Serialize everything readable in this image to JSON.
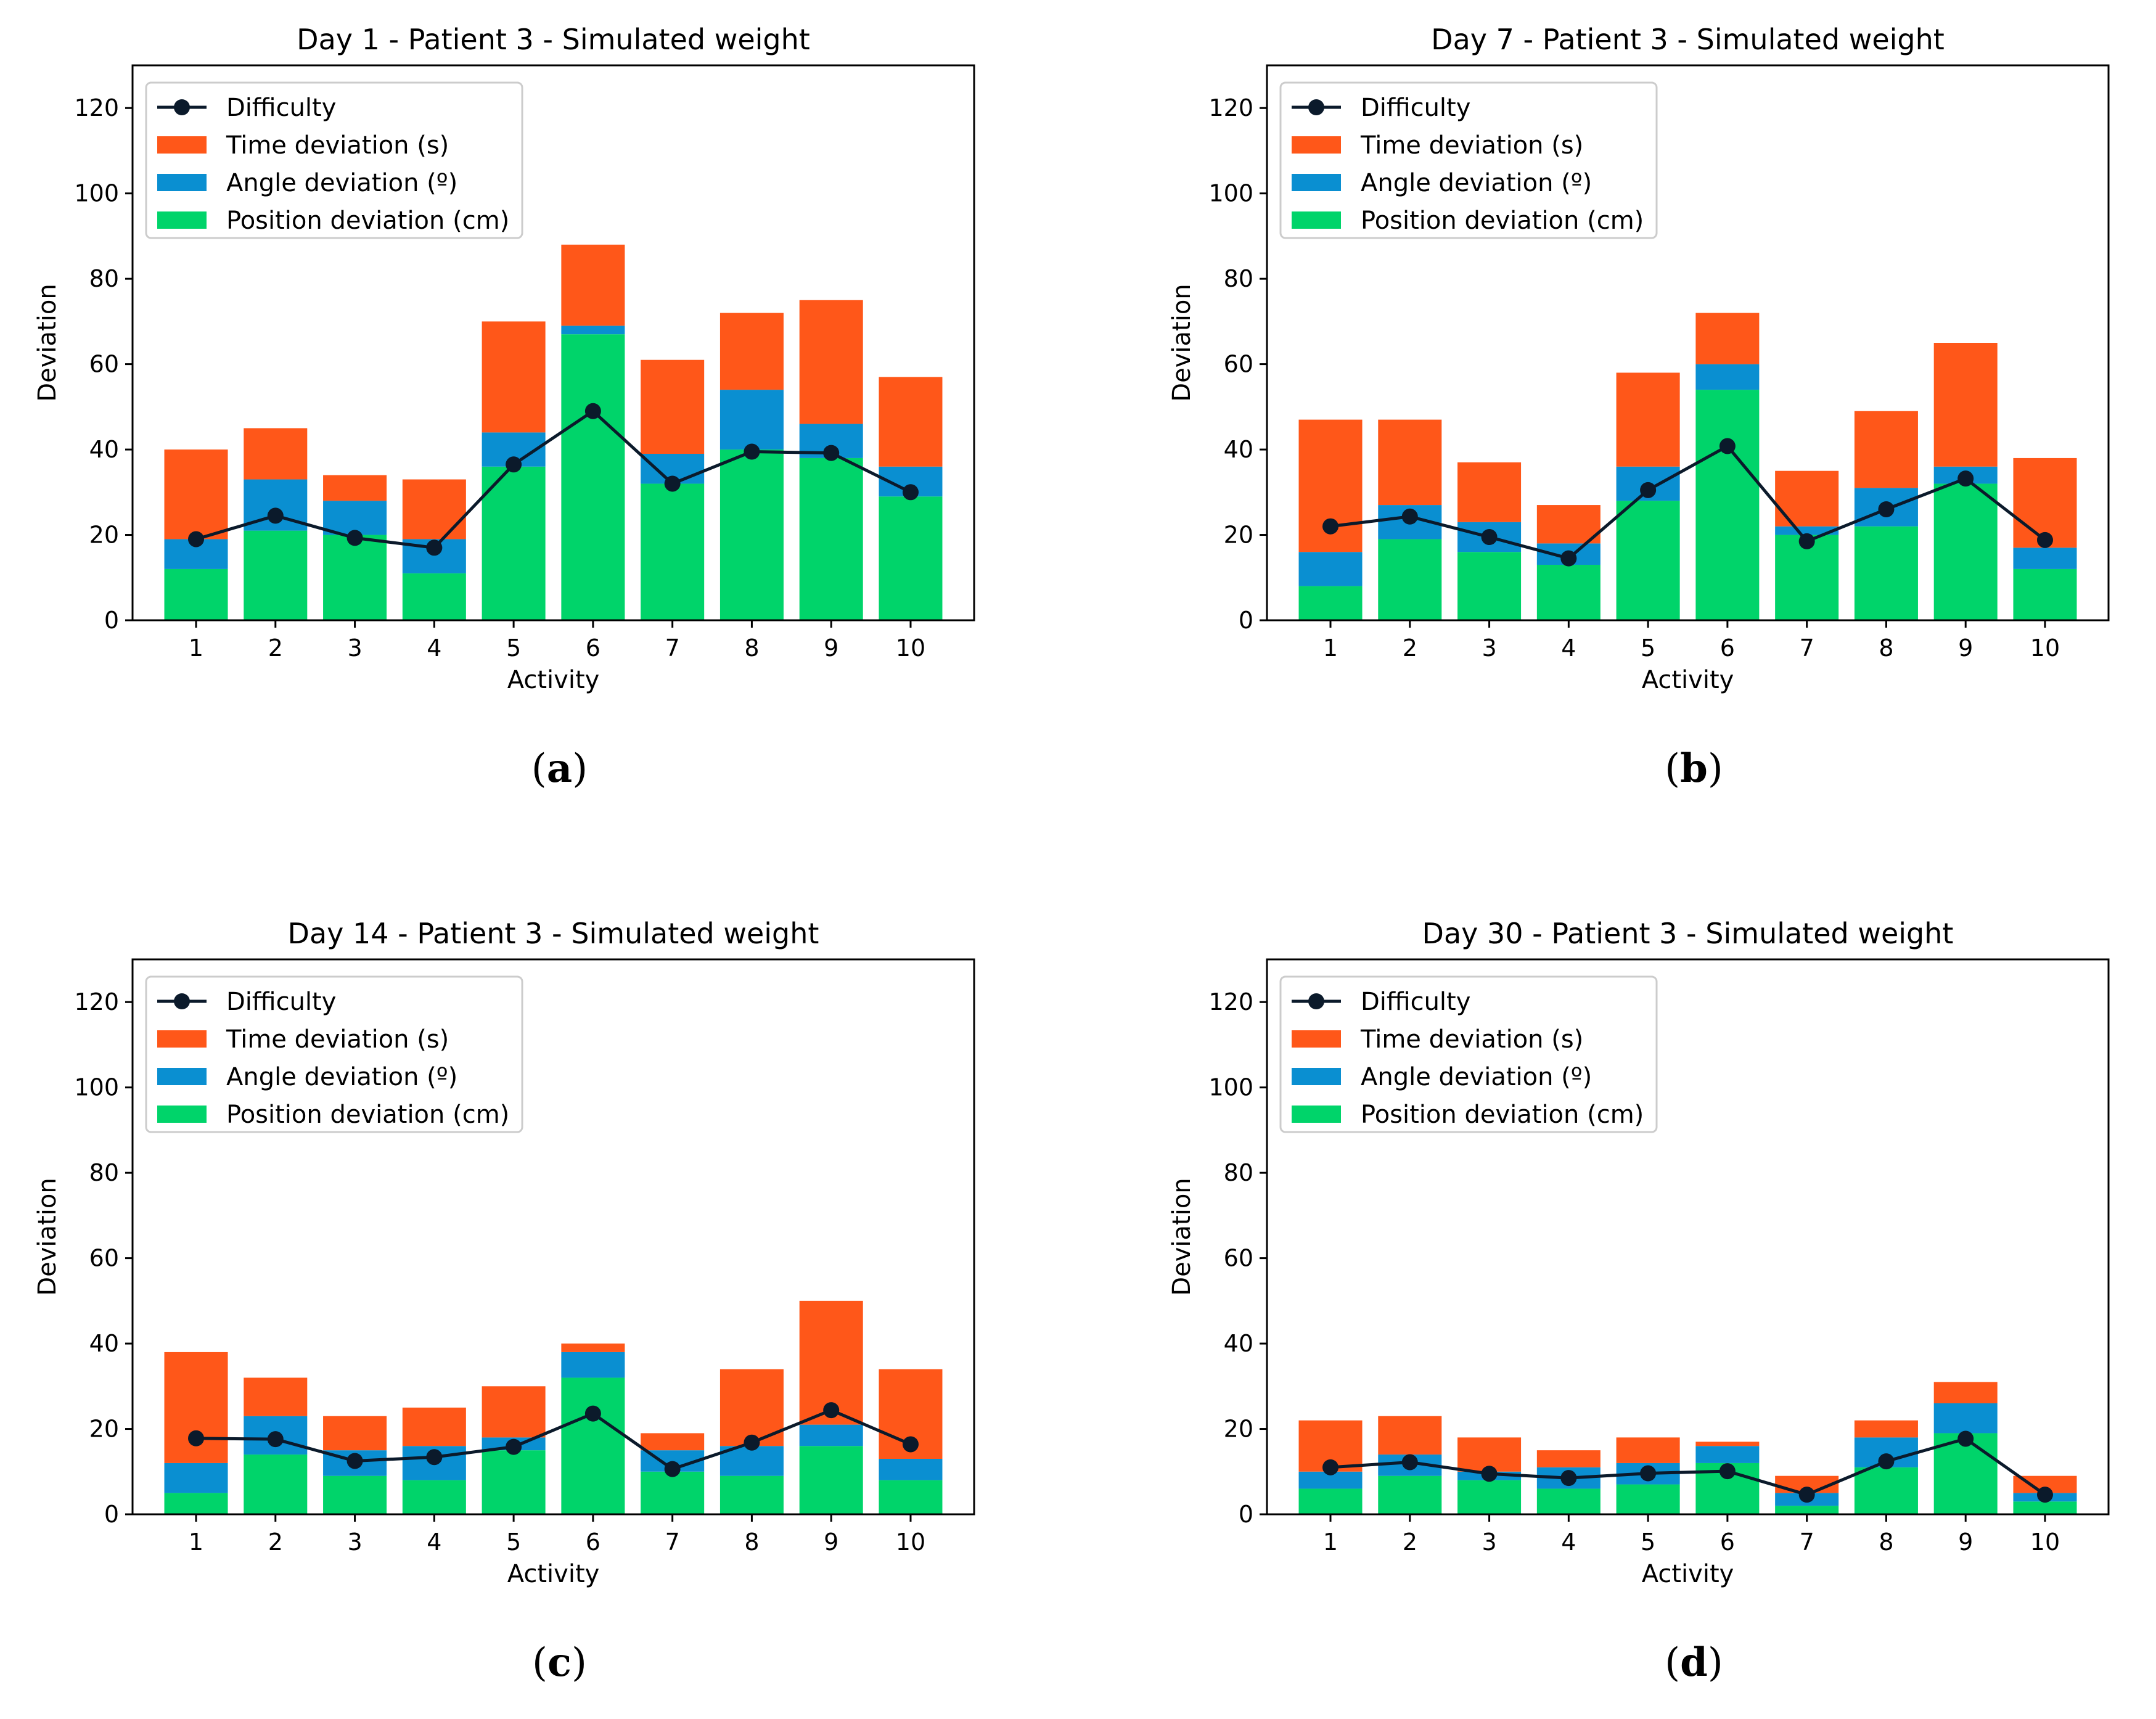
{
  "figure": {
    "panel_labels": [
      "(a)",
      "(b)",
      "(c)",
      "(d)"
    ],
    "panel_letters": [
      "a",
      "b",
      "c",
      "d"
    ]
  },
  "colors": {
    "position": "#00d46a",
    "angle": "#0a8fd1",
    "time": "#ff5719",
    "difficulty": "#0b1a2b"
  },
  "chart_data": [
    {
      "type": "bar",
      "title": "Day 1 - Patient 3 - Simulated weight",
      "xlabel": "Activity",
      "ylabel": "Deviation",
      "ylim": [
        0,
        130
      ],
      "yticks": [
        0,
        20,
        40,
        60,
        80,
        100,
        120
      ],
      "categories": [
        "1",
        "2",
        "3",
        "4",
        "5",
        "6",
        "7",
        "8",
        "9",
        "10"
      ],
      "stacked": true,
      "legend_position": "top-left",
      "series": [
        {
          "name": "Position deviation (cm)",
          "kind": "bar",
          "values": [
            12,
            21,
            20,
            11,
            36,
            67,
            32,
            40,
            38,
            29
          ]
        },
        {
          "name": "Angle deviation (º)",
          "kind": "bar",
          "values": [
            7,
            12,
            8,
            8,
            8,
            2,
            7,
            14,
            8,
            7
          ]
        },
        {
          "name": "Time deviation (s)",
          "kind": "bar",
          "values": [
            21,
            12,
            6,
            14,
            26,
            19,
            22,
            18,
            29,
            21
          ]
        },
        {
          "name": "Difficulty",
          "kind": "line",
          "values": [
            19,
            24.5,
            19.3,
            17,
            36.5,
            49,
            32,
            39.5,
            39.2,
            30
          ]
        }
      ]
    },
    {
      "type": "bar",
      "title": "Day 7 - Patient 3 - Simulated weight",
      "xlabel": "Activity",
      "ylabel": "Deviation",
      "ylim": [
        0,
        130
      ],
      "yticks": [
        0,
        20,
        40,
        60,
        80,
        100,
        120
      ],
      "categories": [
        "1",
        "2",
        "3",
        "4",
        "5",
        "6",
        "7",
        "8",
        "9",
        "10"
      ],
      "stacked": true,
      "legend_position": "top-left",
      "series": [
        {
          "name": "Position deviation (cm)",
          "kind": "bar",
          "values": [
            8,
            19,
            16,
            13,
            28,
            54,
            20,
            22,
            32,
            12
          ]
        },
        {
          "name": "Angle deviation (º)",
          "kind": "bar",
          "values": [
            8,
            8,
            7,
            5,
            8,
            6,
            2,
            9,
            4,
            5
          ]
        },
        {
          "name": "Time deviation (s)",
          "kind": "bar",
          "values": [
            31,
            20,
            14,
            9,
            22,
            12,
            13,
            18,
            29,
            21
          ]
        },
        {
          "name": "Difficulty",
          "kind": "line",
          "values": [
            22,
            24.3,
            19.5,
            14.5,
            30.5,
            40.8,
            18.5,
            26,
            33.2,
            18.8
          ]
        }
      ]
    },
    {
      "type": "bar",
      "title": "Day 14 - Patient 3 - Simulated weight",
      "xlabel": "Activity",
      "ylabel": "Deviation",
      "ylim": [
        0,
        130
      ],
      "yticks": [
        0,
        20,
        40,
        60,
        80,
        100,
        120
      ],
      "categories": [
        "1",
        "2",
        "3",
        "4",
        "5",
        "6",
        "7",
        "8",
        "9",
        "10"
      ],
      "stacked": true,
      "legend_position": "top-left",
      "series": [
        {
          "name": "Position deviation (cm)",
          "kind": "bar",
          "values": [
            5,
            14,
            9,
            8,
            15,
            32,
            10,
            9,
            16,
            8
          ]
        },
        {
          "name": "Angle deviation (º)",
          "kind": "bar",
          "values": [
            7,
            9,
            6,
            8,
            3,
            6,
            5,
            7,
            5,
            5
          ]
        },
        {
          "name": "Time deviation (s)",
          "kind": "bar",
          "values": [
            26,
            9,
            8,
            9,
            12,
            2,
            4,
            18,
            29,
            21
          ]
        },
        {
          "name": "Difficulty",
          "kind": "line",
          "values": [
            17.8,
            17.6,
            12.5,
            13.4,
            15.8,
            23.6,
            10.6,
            16.8,
            24.4,
            16.4
          ]
        }
      ]
    },
    {
      "type": "bar",
      "title": "Day 30 - Patient 3 - Simulated weight",
      "xlabel": "Activity",
      "ylabel": "Deviation",
      "ylim": [
        0,
        130
      ],
      "yticks": [
        0,
        20,
        40,
        60,
        80,
        100,
        120
      ],
      "categories": [
        "1",
        "2",
        "3",
        "4",
        "5",
        "6",
        "7",
        "8",
        "9",
        "10"
      ],
      "stacked": true,
      "legend_position": "top-left",
      "series": [
        {
          "name": "Position deviation (cm)",
          "kind": "bar",
          "values": [
            6,
            9,
            8,
            6,
            7,
            12,
            2,
            11,
            19,
            3
          ]
        },
        {
          "name": "Angle deviation (º)",
          "kind": "bar",
          "values": [
            4,
            5,
            2,
            5,
            5,
            4,
            3,
            7,
            7,
            2
          ]
        },
        {
          "name": "Time deviation (s)",
          "kind": "bar",
          "values": [
            12,
            9,
            8,
            4,
            6,
            1,
            4,
            4,
            5,
            4
          ]
        },
        {
          "name": "Difficulty",
          "kind": "line",
          "values": [
            11,
            12.2,
            9.5,
            8.5,
            9.6,
            10.1,
            4.6,
            12.4,
            17.7,
            4.6
          ]
        }
      ]
    }
  ]
}
